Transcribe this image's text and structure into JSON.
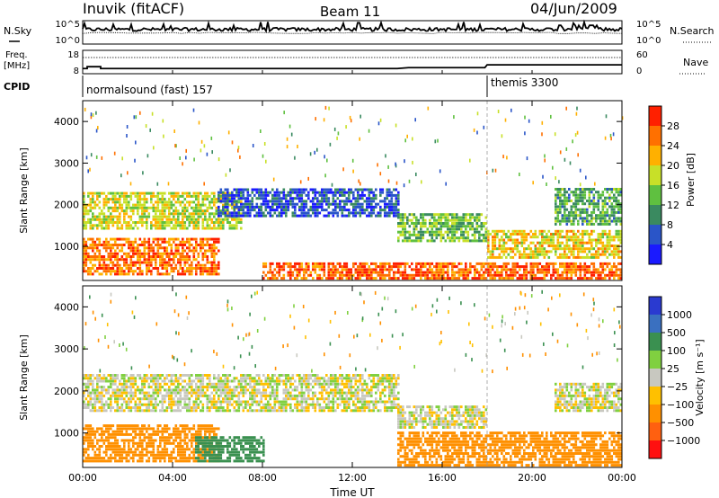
{
  "header": {
    "station": "Inuvik (fitACF)",
    "beam": "Beam 11",
    "date": "04/Jun/2009"
  },
  "nsky_panel": {
    "left_label": "N.Sky",
    "right_label": "N.Search",
    "ticks": [
      "10^5",
      "10^0"
    ]
  },
  "freq_panel": {
    "left_label_line1": "Freq.",
    "left_label_line2": "[MHz]",
    "left_ticks": [
      "18",
      "8"
    ],
    "right_label": "Nave",
    "right_ticks": [
      "60",
      "0"
    ]
  },
  "cpid_panel": {
    "label": "CPID",
    "mode1": "normalsound (fast) 157",
    "mode2": "themis 3300",
    "mode2_start_hour": 18
  },
  "power_panel": {
    "ylabel": "Slant Range [km]",
    "yticks": [
      1000,
      2000,
      3000,
      4000
    ],
    "colorbar_label": "Power [dB]",
    "colorbar_ticks": [
      "4",
      "8",
      "12",
      "16",
      "20",
      "24",
      "28"
    ],
    "colorbar_colors": [
      "#1a1aff",
      "#2a55c8",
      "#3a8a60",
      "#5fc040",
      "#c8e028",
      "#ffb000",
      "#ff7000",
      "#ff2000"
    ]
  },
  "velocity_panel": {
    "ylabel": "Slant Range [km]",
    "yticks": [
      1000,
      2000,
      3000,
      4000
    ],
    "colorbar_label": "Velocity [m s⁻¹]",
    "colorbar_ticks": [
      "1000",
      "500",
      "100",
      "25",
      "−25",
      "−100",
      "−500",
      "−1000"
    ],
    "colorbar_colors": [
      "#2a3ad0",
      "#3a70c0",
      "#3a9050",
      "#80d040",
      "#c8c8c0",
      "#ffc000",
      "#ff9000",
      "#ff6010",
      "#ff1010"
    ]
  },
  "xaxis": {
    "label": "Time UT",
    "ticks": [
      "00:00",
      "04:00",
      "08:00",
      "12:00",
      "16:00",
      "20:00",
      "00:00"
    ]
  },
  "chart_data": {
    "type": "heatmap",
    "x_range_hours": [
      0,
      24
    ],
    "y_range_km": [
      180,
      4500
    ],
    "power_echo_bands": [
      {
        "t0": 0,
        "t1": 6,
        "r0": 300,
        "r1": 1200,
        "value_db": 26
      },
      {
        "t0": 0,
        "t1": 7,
        "r0": 1400,
        "r1": 2300,
        "value_db": 18
      },
      {
        "t0": 6,
        "t1": 14,
        "r0": 1700,
        "r1": 2400,
        "value_db": 6
      },
      {
        "t0": 14,
        "t1": 18,
        "r0": 1100,
        "r1": 1800,
        "value_db": 14
      },
      {
        "t0": 8,
        "t1": 24,
        "r0": 200,
        "r1": 600,
        "value_db": 27
      },
      {
        "t0": 18,
        "t1": 24,
        "r0": 700,
        "r1": 1400,
        "value_db": 20
      },
      {
        "t0": 21,
        "t1": 24,
        "r0": 1500,
        "r1": 2400,
        "value_db": 12
      }
    ],
    "velocity_echo_bands": [
      {
        "t0": 0,
        "t1": 6,
        "r0": 300,
        "r1": 1200,
        "value_ms": -300
      },
      {
        "t0": 0,
        "t1": 14,
        "r0": 1500,
        "r1": 2400,
        "value_ms": 0
      },
      {
        "t0": 5,
        "t1": 8,
        "r0": 300,
        "r1": 900,
        "value_ms": 200
      },
      {
        "t0": 14,
        "t1": 18,
        "r0": 1100,
        "r1": 1600,
        "value_ms": 0
      },
      {
        "t0": 14,
        "t1": 24,
        "r0": 200,
        "r1": 1000,
        "value_ms": -400
      },
      {
        "t0": 21,
        "t1": 24,
        "r0": 1500,
        "r1": 2200,
        "value_ms": 0
      }
    ]
  }
}
